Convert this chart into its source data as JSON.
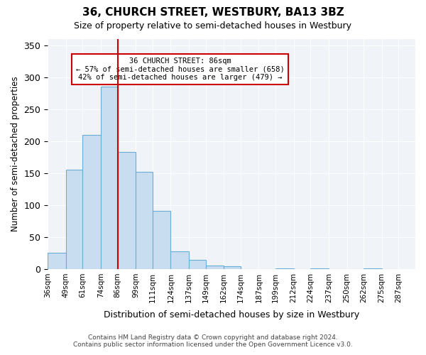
{
  "title": "36, CHURCH STREET, WESTBURY, BA13 3BZ",
  "subtitle": "Size of property relative to semi-detached houses in Westbury",
  "xlabel": "Distribution of semi-detached houses by size in Westbury",
  "ylabel": "Number of semi-detached properties",
  "bin_labels": [
    "36sqm",
    "49sqm",
    "61sqm",
    "74sqm",
    "86sqm",
    "99sqm",
    "111sqm",
    "124sqm",
    "137sqm",
    "149sqm",
    "162sqm",
    "174sqm",
    "187sqm",
    "199sqm",
    "212sqm",
    "224sqm",
    "237sqm",
    "250sqm",
    "262sqm",
    "275sqm",
    "287sqm"
  ],
  "bin_edges": [
    36,
    49,
    61,
    74,
    86,
    99,
    111,
    124,
    137,
    149,
    162,
    174,
    187,
    199,
    212,
    224,
    237,
    250,
    262,
    275,
    287
  ],
  "bar_heights": [
    25,
    155,
    210,
    285,
    183,
    152,
    91,
    28,
    14,
    5,
    4,
    0,
    0,
    1,
    0,
    1,
    0,
    0,
    1,
    0
  ],
  "bar_color": "#c8ddf0",
  "bar_edge_color": "#6aaed6",
  "property_value": 86,
  "property_label": "36 CHURCH STREET: 86sqm",
  "annotation_line1": "← 57% of semi-detached houses are smaller (658)",
  "annotation_line2": "42% of semi-detached houses are larger (479) →",
  "vline_color": "#cc0000",
  "annotation_box_edge": "#cc0000",
  "ylim": [
    0,
    360
  ],
  "yticks": [
    0,
    50,
    100,
    150,
    200,
    250,
    300,
    350
  ],
  "background_color": "#f0f4f8",
  "footer_line1": "Contains HM Land Registry data © Crown copyright and database right 2024.",
  "footer_line2": "Contains public sector information licensed under the Open Government Licence v3.0."
}
